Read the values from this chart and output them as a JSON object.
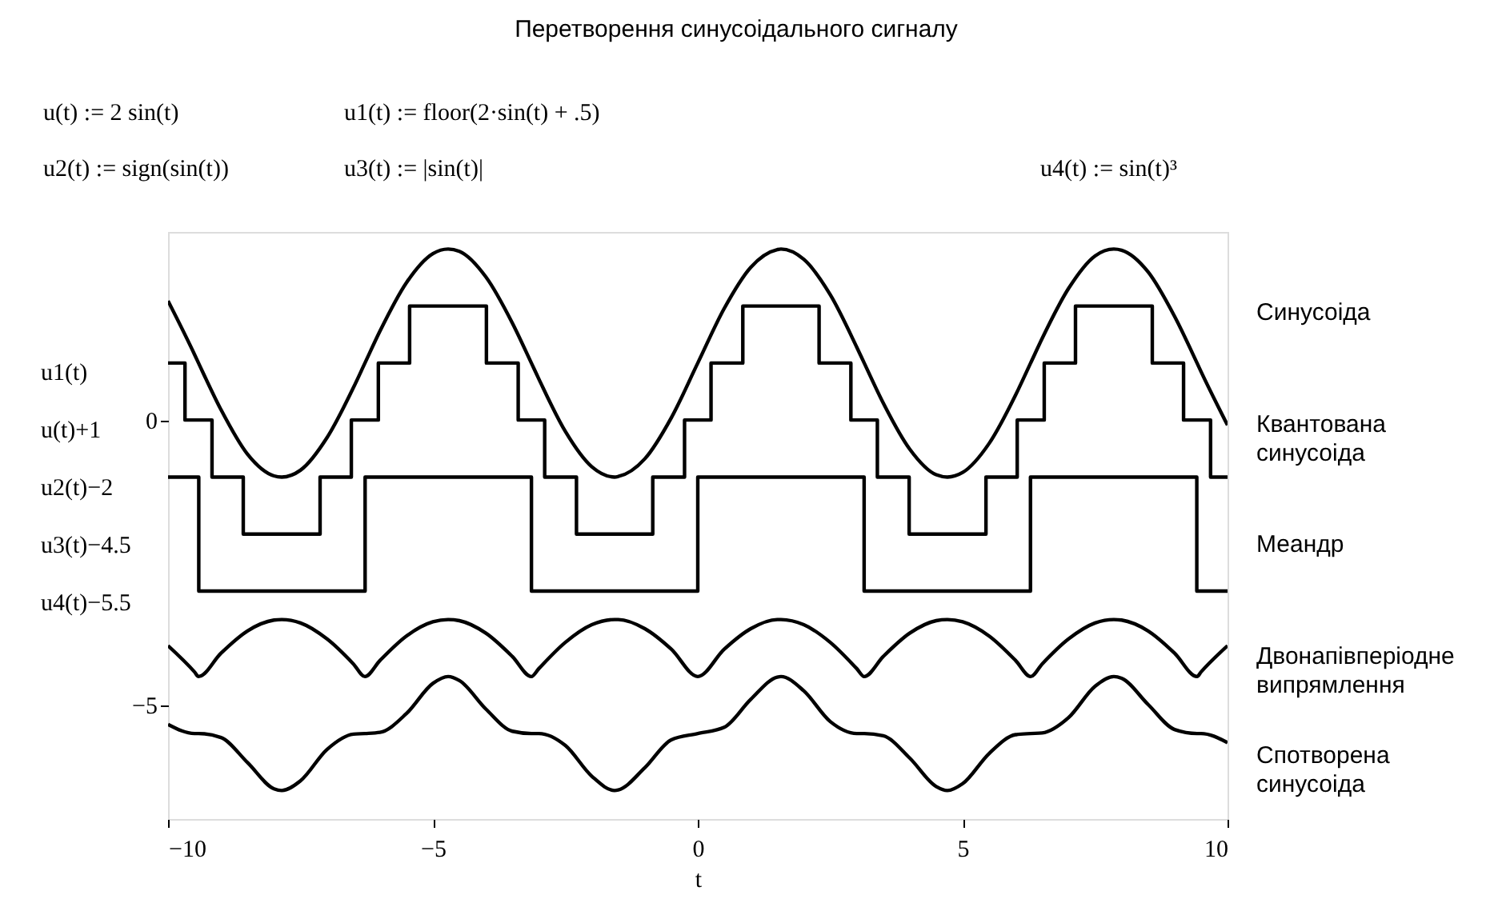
{
  "chart_data": {
    "type": "line",
    "title": "Перетворення синусоідального сигналу",
    "annotations": [
      "u(t) := 2 sin(t)",
      "u1(t) := floor(2·sin(t) + .5)",
      "u2(t) := sign(sin(t))",
      "u3(t) := |sin(t)|",
      "u4(t) := sin(t)³"
    ],
    "xlabel": "t",
    "ylabel": [
      "u1(t)",
      "u(t)+1",
      "u2(t)−2",
      "u3(t)−4.5",
      "u4(t)−5.5"
    ],
    "xlim": [
      -10,
      10
    ],
    "xticks": [
      -10,
      -5,
      0,
      5,
      10
    ],
    "ylim": [
      -7,
      3.3
    ],
    "yticks": [
      0,
      -5
    ],
    "grid": false,
    "legend": false,
    "line_style": "solid",
    "marker": "none",
    "series": [
      {
        "name": "Синусоіда",
        "color": "#000000",
        "x": [
          -10,
          -9.5,
          -9.4248,
          -9,
          -8.5,
          -8,
          -7.854,
          -7.5,
          -7,
          -6.5,
          -6.2832,
          -6,
          -5.5,
          -5,
          -4.7124,
          -4.5,
          -4,
          -3.5,
          -3.1416,
          -3,
          -2.5,
          -2,
          -1.5708,
          -1.5,
          -1,
          -0.5,
          0,
          0.5,
          1,
          1.5,
          1.5708,
          2,
          2.5,
          3,
          3.1416,
          3.5,
          4,
          4.5,
          4.7124,
          5,
          5.5,
          6,
          6.2832,
          6.5,
          7,
          7.5,
          7.854,
          8,
          8.5,
          9,
          9.4248,
          9.5,
          10
        ],
        "values": [
          2.09,
          1.15,
          1,
          0.18,
          -0.6,
          -0.98,
          -1,
          -0.88,
          -0.31,
          0.57,
          1,
          1.56,
          2.41,
          2.92,
          3,
          2.96,
          2.51,
          1.7,
          1,
          0.72,
          -0.2,
          -0.82,
          -1,
          -0.99,
          -0.68,
          0.04,
          1,
          1.96,
          2.68,
          2.99,
          3,
          2.82,
          2.2,
          1.28,
          1,
          0.3,
          -0.51,
          -0.96,
          -1,
          -0.92,
          -0.41,
          0.44,
          1,
          1.43,
          2.31,
          2.88,
          3,
          2.98,
          2.6,
          1.82,
          1,
          0.85,
          -0.09
        ]
      },
      {
        "name": "Квантована синусоіда",
        "type": "step",
        "color": "#000000",
        "x": [
          -10,
          -9.68,
          -9.17,
          -8.58,
          -7.13,
          -6.54,
          -6.03,
          -5.44,
          -3.99,
          -3.39,
          -2.89,
          -2.29,
          -0.85,
          -0.25,
          0.25,
          0.85,
          2.29,
          2.89,
          3.39,
          3.99,
          5.44,
          6.03,
          6.54,
          7.13,
          8.58,
          9.17,
          9.68,
          10
        ],
        "values": [
          1,
          0,
          -1,
          -2,
          -1,
          0,
          1,
          2,
          1,
          0,
          -1,
          -2,
          -1,
          0,
          1,
          2,
          1,
          0,
          -1,
          -2,
          -1,
          0,
          1,
          2,
          1,
          0,
          -1,
          -1
        ]
      },
      {
        "name": "Меандр",
        "type": "step",
        "color": "#000000",
        "x": [
          -10,
          -9.42,
          -6.28,
          -3.14,
          0,
          3.14,
          6.28,
          9.42,
          10
        ],
        "values": [
          -1,
          -3,
          -1,
          -3,
          -1,
          -3,
          -1,
          -3,
          -3
        ]
      },
      {
        "name": "Двонапівперіодне випрямлення",
        "color": "#000000",
        "x": [
          -10,
          -9.5,
          -9.4248,
          -9,
          -8.5,
          -8,
          -7.854,
          -7.5,
          -7,
          -6.5,
          -6.2832,
          -6,
          -5.5,
          -5,
          -4.7124,
          -4.5,
          -4,
          -3.5,
          -3.1416,
          -3,
          -2.5,
          -2,
          -1.5708,
          -1.5,
          -1,
          -0.5,
          0,
          0.5,
          1,
          1.5,
          1.5708,
          2,
          2.5,
          3,
          3.1416,
          3.5,
          4,
          4.5,
          4.7124,
          5,
          5.5,
          6,
          6.2832,
          6.5,
          7,
          7.5,
          7.854,
          8,
          8.5,
          9,
          9.4248,
          9.5,
          10
        ],
        "values": [
          -3.96,
          -4.42,
          -4.5,
          -4.09,
          -3.7,
          -3.51,
          -3.5,
          -3.56,
          -3.84,
          -4.28,
          -4.5,
          -4.22,
          -3.79,
          -3.54,
          -3.5,
          -3.52,
          -3.74,
          -4.15,
          -4.5,
          -4.36,
          -3.9,
          -3.59,
          -3.5,
          -3.5,
          -3.66,
          -4.02,
          -4.5,
          -4.02,
          -3.66,
          -3.5,
          -3.5,
          -3.59,
          -3.9,
          -4.36,
          -4.5,
          -4.15,
          -3.74,
          -3.52,
          -3.5,
          -3.54,
          -3.79,
          -4.22,
          -4.5,
          -4.28,
          -3.84,
          -3.56,
          -3.5,
          -3.51,
          -3.7,
          -4.09,
          -4.5,
          -4.42,
          -3.96
        ]
      },
      {
        "name": "Спотворена синусоіда",
        "color": "#000000",
        "x": [
          -10,
          -9.5,
          -9.4248,
          -9,
          -8.5,
          -8,
          -7.854,
          -7.5,
          -7,
          -6.5,
          -6.2832,
          -6,
          -5.5,
          -5,
          -4.7124,
          -4.5,
          -4,
          -3.5,
          -3.1416,
          -3,
          -2.5,
          -2,
          -1.5708,
          -1.5,
          -1,
          -0.5,
          0,
          0.5,
          1,
          1.5,
          1.5708,
          2,
          2.5,
          3,
          3.1416,
          3.5,
          4,
          4.5,
          4.7124,
          5,
          5.5,
          6,
          6.2832,
          6.5,
          7,
          7.5,
          7.854,
          8,
          8.5,
          9,
          9.4248,
          9.5,
          10
        ],
        "values": [
          -5.34,
          -5.5,
          -5.5,
          -5.57,
          -6.01,
          -6.47,
          -6.5,
          -6.33,
          -5.78,
          -5.51,
          -5.5,
          -5.48,
          -5.15,
          -4.62,
          -4.5,
          -4.57,
          -5.07,
          -5.46,
          -5.5,
          -5.5,
          -5.71,
          -6.25,
          -6.5,
          -6.49,
          -6.1,
          -5.61,
          -5.5,
          -5.39,
          -4.9,
          -4.51,
          -4.5,
          -4.75,
          -5.29,
          -5.5,
          -5.5,
          -5.54,
          -5.93,
          -6.43,
          -6.5,
          -6.38,
          -5.85,
          -5.52,
          -5.5,
          -5.49,
          -5.22,
          -4.67,
          -4.5,
          -4.53,
          -4.99,
          -5.43,
          -5.5,
          -5.5,
          -5.66
        ]
      }
    ]
  }
}
